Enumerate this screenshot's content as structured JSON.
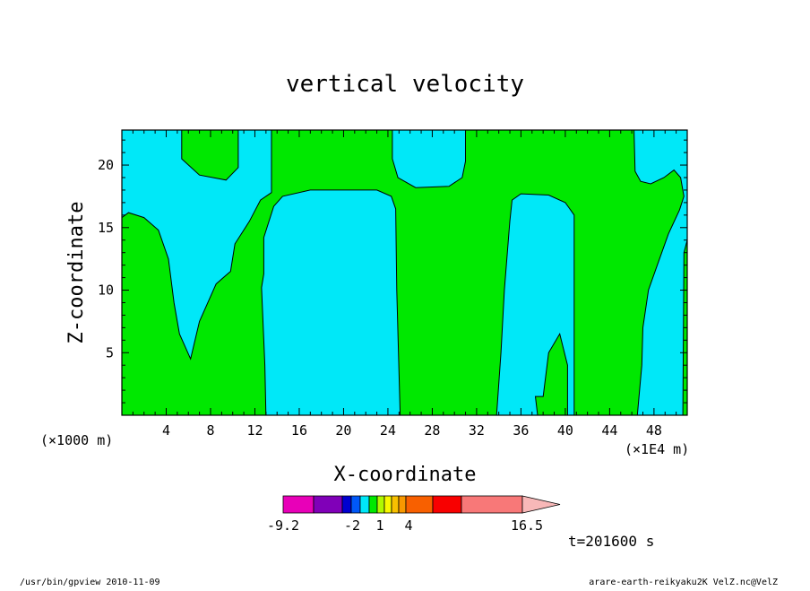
{
  "chart_data": {
    "type": "heatmap",
    "title": "vertical velocity",
    "xlabel": "X-coordinate",
    "ylabel": "Z-coordinate",
    "x_unit_left": "(×1000 m)",
    "x_unit_right": "(×1E4 m)",
    "xlim": [
      0,
      51
    ],
    "ylim": [
      0,
      22.8
    ],
    "x_ticks": [
      4,
      8,
      12,
      16,
      20,
      24,
      28,
      32,
      36,
      40,
      44,
      48
    ],
    "y_ticks": [
      5,
      10,
      15,
      20
    ],
    "colors": {
      "negative": "#00e8f8",
      "positive": "#00e800",
      "contour": "#000000"
    },
    "regions": [
      {
        "sign": "negative",
        "polygon": [
          [
            0,
            22.8
          ],
          [
            5.4,
            22.8
          ],
          [
            5.4,
            20.5
          ],
          [
            7,
            19.2
          ],
          [
            9.4,
            18.8
          ],
          [
            10.5,
            19.8
          ],
          [
            10.5,
            22.8
          ],
          [
            13.5,
            22.8
          ],
          [
            13.5,
            17.8
          ],
          [
            12.5,
            17.2
          ],
          [
            11.5,
            15.5
          ],
          [
            10.2,
            13.7
          ],
          [
            9.8,
            11.5
          ],
          [
            8.5,
            10.5
          ],
          [
            7,
            7.5
          ],
          [
            6.2,
            4.5
          ],
          [
            5.2,
            6.5
          ],
          [
            4.7,
            9
          ],
          [
            4.2,
            12.5
          ],
          [
            3.3,
            14.8
          ],
          [
            2,
            15.8
          ],
          [
            0.6,
            16.2
          ],
          [
            0,
            15.8
          ]
        ]
      },
      {
        "sign": "negative",
        "polygon": [
          [
            13,
            0
          ],
          [
            12.9,
            4
          ],
          [
            12.6,
            10.2
          ],
          [
            12.8,
            11.3
          ],
          [
            12.8,
            14.2
          ],
          [
            13.7,
            16.7
          ],
          [
            14.5,
            17.5
          ],
          [
            17,
            18
          ],
          [
            23,
            18
          ],
          [
            24.3,
            17.5
          ],
          [
            24.7,
            16.5
          ],
          [
            24.8,
            10
          ],
          [
            25.1,
            0
          ]
        ]
      },
      {
        "sign": "negative",
        "polygon": [
          [
            24.4,
            22.8
          ],
          [
            24.4,
            20.5
          ],
          [
            24.9,
            19
          ],
          [
            26.5,
            18.2
          ],
          [
            29.5,
            18.3
          ],
          [
            30.7,
            19
          ],
          [
            31,
            20.3
          ],
          [
            31,
            22.8
          ]
        ]
      },
      {
        "sign": "negative",
        "polygon": [
          [
            33.8,
            0
          ],
          [
            34.2,
            5
          ],
          [
            34.5,
            10
          ],
          [
            35,
            15.5
          ],
          [
            35.2,
            17.2
          ],
          [
            36,
            17.7
          ],
          [
            38.5,
            17.6
          ],
          [
            40,
            17
          ],
          [
            40.8,
            16
          ],
          [
            40.8,
            0
          ],
          [
            40.2,
            0
          ],
          [
            40.2,
            4
          ],
          [
            39.5,
            6.5
          ],
          [
            38.5,
            5
          ],
          [
            38,
            1.5
          ],
          [
            37.3,
            1.5
          ],
          [
            37.5,
            0
          ]
        ]
      },
      {
        "sign": "negative",
        "polygon": [
          [
            46.5,
            0
          ],
          [
            46.9,
            4
          ],
          [
            47,
            7
          ],
          [
            47.5,
            10
          ],
          [
            48.3,
            12
          ],
          [
            49.3,
            14.5
          ],
          [
            50.3,
            16.4
          ],
          [
            50.7,
            17.5
          ],
          [
            50.4,
            19
          ],
          [
            49.8,
            19.6
          ],
          [
            48.9,
            19
          ],
          [
            47.7,
            18.5
          ],
          [
            46.8,
            18.7
          ],
          [
            46.3,
            19.5
          ],
          [
            46.2,
            22.8
          ],
          [
            51,
            22.8
          ],
          [
            51,
            14
          ],
          [
            50.7,
            13
          ],
          [
            50.6,
            0
          ]
        ]
      }
    ],
    "colorbar": {
      "labels": [
        "-9.2",
        "-2",
        "1",
        "4",
        "16.5"
      ],
      "segment_colors": [
        "#e800b8",
        "#8000b8",
        "#0000d0",
        "#0058f8",
        "#00e8f8",
        "#00e800",
        "#b0f800",
        "#f8f800",
        "#f8c000",
        "#f89800",
        "#f86000",
        "#f80000",
        "#f87878",
        "#f8b8b8"
      ]
    },
    "time_label": "t=201600 s"
  },
  "footer": {
    "left": "/usr/bin/gpview  2010-11-09",
    "right": "arare-earth-reikyaku2K_VelZ.nc@VelZ"
  }
}
